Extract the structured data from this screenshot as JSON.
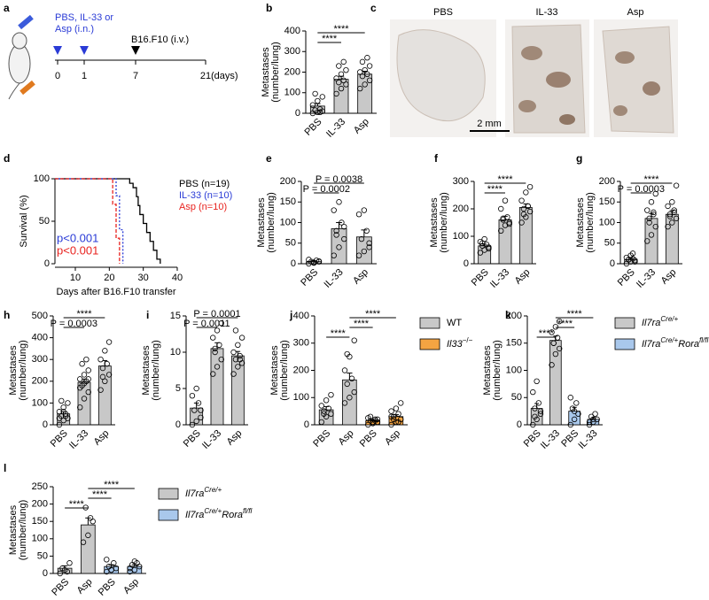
{
  "schematic": {
    "label": "a",
    "treatment": [
      "PBS, IL-33 or",
      "Asp (i.n.)"
    ],
    "injection": "B16.F10 (i.v.)",
    "days": [
      0,
      1,
      7,
      21
    ],
    "unit": "(days)"
  },
  "images": {
    "label": "c",
    "titles": [
      "PBS",
      "IL-33",
      "Asp"
    ],
    "scale": "2 mm"
  },
  "chart_data": [
    {
      "type": "bar",
      "label": "b",
      "ylabel": [
        "Metastases",
        "(number/lung)"
      ],
      "categories": [
        "PBS",
        "IL-33",
        "Asp"
      ],
      "series": [
        {
          "color": "#c8c8c8",
          "values": [
            35,
            165,
            190
          ],
          "errors": [
            12,
            15,
            14
          ],
          "points": [
            [
              0,
              5,
              10,
              15,
              20,
              40,
              60,
              80,
              95,
              5
            ],
            [
              95,
              120,
              140,
              150,
              160,
              170,
              190,
              210,
              230,
              250
            ],
            [
              120,
              140,
              160,
              180,
              190,
              200,
              210,
              230,
              250,
              270
            ]
          ]
        }
      ],
      "ylim": [
        0,
        400
      ],
      "yticks": [
        0,
        100,
        200,
        300,
        400
      ],
      "brackets": [
        {
          "from": 0,
          "to": 1,
          "label": "****"
        },
        {
          "from": 0,
          "to": 2,
          "label": "****"
        }
      ]
    },
    {
      "type": "line",
      "label": "d",
      "xlabel": "Days after B16.F10 transfer",
      "ylabel": "Survival (%)",
      "series": [
        {
          "name": "PBS (n=19)",
          "color": "#000000",
          "dash": "none",
          "x": [
            4,
            25,
            26,
            27,
            28,
            28.5,
            29,
            30,
            31,
            32,
            33,
            34,
            35
          ],
          "values": [
            100,
            100,
            94.7,
            89.5,
            78.9,
            68.4,
            57.9,
            47.4,
            36.8,
            26.3,
            15.8,
            5.3,
            0
          ]
        },
        {
          "name": "IL-33 (n=10)",
          "color": "#2a3bd6",
          "dash": "2 2",
          "x": [
            4,
            21,
            22,
            23,
            24
          ],
          "values": [
            100,
            100,
            80,
            40,
            0
          ]
        },
        {
          "name": "Asp (n=10)",
          "color": "#e8231f",
          "dash": "4 2",
          "x": [
            4,
            20,
            21,
            22,
            23
          ],
          "values": [
            100,
            100,
            70,
            30,
            0
          ]
        }
      ],
      "annotations": [
        {
          "text": "p<0.001",
          "color": "#2a3bd6"
        },
        {
          "text": "p<0.001",
          "color": "#e8231f"
        }
      ],
      "xlim": [
        4,
        40
      ],
      "xticks": [
        10,
        20,
        30,
        40
      ],
      "ylim": [
        0,
        100
      ],
      "yticks": [
        0,
        50,
        100
      ]
    },
    {
      "type": "bar",
      "label": "e",
      "ylabel": [
        "Metastases",
        "(number/lung)"
      ],
      "categories": [
        "PBS",
        "IL-33",
        "Asp"
      ],
      "series": [
        {
          "color": "#c8c8c8",
          "values": [
            5,
            85,
            65
          ],
          "errors": [
            2,
            15,
            17
          ],
          "points": [
            [
              0,
              2,
              5,
              5,
              8,
              10,
              3,
              6
            ],
            [
              20,
              40,
              60,
              80,
              100,
              130,
              150,
              90,
              70
            ],
            [
              20,
              30,
              40,
              60,
              80,
              120,
              130,
              50
            ]
          ]
        }
      ],
      "ylim": [
        0,
        200
      ],
      "yticks": [
        0,
        50,
        100,
        150,
        200
      ],
      "brackets": [
        {
          "from": 0,
          "to": 1,
          "label": "P = 0.0002"
        },
        {
          "from": 0,
          "to": 2,
          "label": "P = 0.0038"
        }
      ]
    },
    {
      "type": "bar",
      "label": "f",
      "ylabel": [
        "Metastases",
        "(number/lung)"
      ],
      "categories": [
        "PBS",
        "IL-33",
        "Asp"
      ],
      "series": [
        {
          "color": "#c8c8c8",
          "values": [
            65,
            160,
            205
          ],
          "errors": [
            6,
            13,
            13
          ],
          "points": [
            [
              40,
              50,
              60,
              65,
              70,
              80,
              90,
              55,
              75
            ],
            [
              120,
              140,
              150,
              160,
              170,
              200,
              230,
              145,
              165
            ],
            [
              150,
              170,
              190,
              200,
              210,
              230,
              260,
              280,
              180,
              210
            ]
          ]
        }
      ],
      "ylim": [
        0,
        300
      ],
      "yticks": [
        0,
        100,
        200,
        300
      ],
      "brackets": [
        {
          "from": 0,
          "to": 1,
          "label": "****"
        },
        {
          "from": 0,
          "to": 2,
          "label": "****"
        }
      ]
    },
    {
      "type": "bar",
      "label": "g",
      "ylabel": [
        "Metastases",
        "(number/lung)"
      ],
      "categories": [
        "PBS",
        "IL-33",
        "Asp"
      ],
      "series": [
        {
          "color": "#c8c8c8",
          "values": [
            10,
            110,
            120
          ],
          "errors": [
            3,
            12,
            9
          ],
          "points": [
            [
              0,
              5,
              8,
              10,
              12,
              15,
              20,
              5,
              10,
              25
            ],
            [
              55,
              70,
              90,
              110,
              120,
              130,
              150,
              170,
              100,
              125
            ],
            [
              90,
              100,
              110,
              120,
              130,
              140,
              150,
              190,
              115,
              125
            ]
          ]
        }
      ],
      "ylim": [
        0,
        200
      ],
      "yticks": [
        0,
        50,
        100,
        150,
        200
      ],
      "brackets": [
        {
          "from": 0,
          "to": 1,
          "label": "P = 0.0003"
        },
        {
          "from": 0,
          "to": 2,
          "label": "****"
        }
      ]
    },
    {
      "type": "bar",
      "label": "h",
      "ylabel": [
        "Metastases",
        "(number/lung)"
      ],
      "categories": [
        "PBS",
        "IL-33",
        "Asp"
      ],
      "series": [
        {
          "color": "#c8c8c8",
          "values": [
            50,
            195,
            270
          ],
          "errors": [
            10,
            15,
            25
          ],
          "points": [
            [
              0,
              20,
              30,
              40,
              50,
              60,
              80,
              100,
              110,
              40,
              30,
              60
            ],
            [
              80,
              120,
              150,
              180,
              200,
              210,
              230,
              250,
              280,
              300,
              170,
              190,
              210
            ],
            [
              160,
              200,
              230,
              260,
              280,
              300,
              340,
              380,
              220
            ]
          ]
        }
      ],
      "ylim": [
        0,
        500
      ],
      "yticks": [
        0,
        100,
        200,
        300,
        400,
        500
      ],
      "brackets": [
        {
          "from": 0,
          "to": 1,
          "label": "P = 0.0003"
        },
        {
          "from": 0,
          "to": 2,
          "label": "****"
        }
      ]
    },
    {
      "type": "bar",
      "label": "i",
      "ylabel": [
        "Metastases",
        "(number/lung)"
      ],
      "categories": [
        "PBS",
        "IL-33",
        "Asp"
      ],
      "series": [
        {
          "color": "#c8c8c8",
          "values": [
            2.3,
            10.5,
            9.5
          ],
          "errors": [
            0.7,
            0.8,
            0.6
          ],
          "points": [
            [
              0,
              0.5,
              1,
              2,
              3,
              4,
              5,
              2
            ],
            [
              7,
              8,
              9,
              10,
              11,
              12,
              13,
              14,
              10.5
            ],
            [
              7,
              8,
              8.5,
              9,
              9.5,
              10,
              11,
              12,
              13,
              9
            ]
          ]
        }
      ],
      "ylim": [
        0,
        15
      ],
      "yticks": [
        0,
        5,
        10,
        15
      ],
      "brackets": [
        {
          "from": 0,
          "to": 1,
          "label": "P = 0.0011"
        },
        {
          "from": 0,
          "to": 2,
          "label": "P = 0.0001"
        }
      ]
    },
    {
      "type": "bar",
      "label": "j",
      "ylabel": [
        "Metastases",
        "(number/lung)"
      ],
      "categories": [
        "PBS",
        "Asp",
        "PBS",
        "Asp"
      ],
      "series": [
        {
          "name_parts": [
            {
              "text": "WT"
            }
          ],
          "color": "#c8c8c8",
          "values": [
            55,
            165,
            null,
            null
          ],
          "errors": [
            12,
            25,
            null,
            null
          ],
          "points": [
            [
              10,
              30,
              40,
              50,
              60,
              70,
              90,
              110,
              40
            ],
            [
              80,
              100,
              120,
              150,
              170,
              200,
              250,
              310,
              260
            ],
            null,
            null
          ]
        },
        {
          "name_parts": [
            {
              "text": "Il33",
              "italic": true
            },
            {
              "text": "−/−",
              "sup": true
            }
          ],
          "color": "#f4a442",
          "values": [
            null,
            null,
            15,
            30
          ],
          "errors": [
            null,
            null,
            3,
            7
          ],
          "points": [
            null,
            null,
            [
              0,
              5,
              10,
              15,
              20,
              25,
              10,
              20,
              30,
              15
            ],
            [
              0,
              10,
              20,
              30,
              40,
              50,
              60,
              80,
              20,
              10,
              30
            ]
          ]
        }
      ],
      "ylim": [
        0,
        400
      ],
      "yticks": [
        0,
        100,
        200,
        300,
        400
      ],
      "brackets": [
        {
          "from": 0,
          "to": 1,
          "label": "****"
        },
        {
          "from": 1,
          "to": 2,
          "label": "****"
        },
        {
          "from": 1,
          "to": 3,
          "label": "****"
        }
      ]
    },
    {
      "type": "bar",
      "label": "k",
      "ylabel": [
        "Metastases",
        "(number/lung)"
      ],
      "categories": [
        "PBS",
        "IL-33",
        "PBS",
        "IL-33"
      ],
      "series": [
        {
          "name_parts": [
            {
              "text": "Il7ra",
              "italic": true
            },
            {
              "text": "Cre/+",
              "sup": true,
              "italic": true
            }
          ],
          "color": "#c8c8c8",
          "values": [
            30,
            155,
            null,
            null
          ],
          "errors": [
            9,
            8,
            null,
            null
          ],
          "points": [
            [
              0,
              10,
              20,
              30,
              40,
              60,
              80,
              25,
              15
            ],
            [
              110,
              130,
              140,
              150,
              160,
              170,
              180,
              190,
              150
            ],
            null,
            null
          ]
        },
        {
          "name_parts": [
            {
              "text": "Il7ra",
              "italic": true
            },
            {
              "text": "Cre/+",
              "sup": true,
              "italic": true
            },
            {
              "text": "Rora",
              "italic": true
            },
            {
              "text": "fl/fl",
              "sup": true,
              "italic": true
            }
          ],
          "color": "#a9c8ec",
          "values": [
            null,
            null,
            25,
            10
          ],
          "errors": [
            null,
            null,
            7,
            3
          ],
          "points": [
            null,
            null,
            [
              0,
              10,
              20,
              30,
              40,
              50,
              25
            ],
            [
              0,
              5,
              10,
              15,
              20,
              5,
              10
            ]
          ]
        }
      ],
      "ylim": [
        0,
        200
      ],
      "yticks": [
        0,
        50,
        100,
        150,
        200
      ],
      "brackets": [
        {
          "from": 0,
          "to": 1,
          "label": "****"
        },
        {
          "from": 1,
          "to": 2,
          "label": "****"
        },
        {
          "from": 1,
          "to": 3,
          "label": "****"
        }
      ]
    },
    {
      "type": "bar",
      "label": "l",
      "ylabel": [
        "Metastases",
        "(number/lung)"
      ],
      "categories": [
        "PBS",
        "Asp",
        "PBS",
        "Asp"
      ],
      "series": [
        {
          "name_parts": [
            {
              "text": "Il7ra",
              "italic": true
            },
            {
              "text": "Cre/+",
              "sup": true,
              "italic": true
            }
          ],
          "color": "#c8c8c8",
          "values": [
            15,
            140,
            null,
            null
          ],
          "errors": [
            7,
            20,
            null,
            null
          ],
          "points": [
            [
              0,
              10,
              30,
              15,
              5
            ],
            [
              90,
              110,
              150,
              190,
              160
            ],
            null,
            null
          ]
        },
        {
          "name_parts": [
            {
              "text": "Il7ra",
              "italic": true
            },
            {
              "text": "Cre/+",
              "sup": true,
              "italic": true
            },
            {
              "text": "Rora",
              "italic": true
            },
            {
              "text": "fl/fl",
              "sup": true,
              "italic": true
            }
          ],
          "color": "#a9c8ec",
          "values": [
            null,
            null,
            20,
            20
          ],
          "errors": [
            null,
            null,
            5,
            5
          ],
          "points": [
            null,
            null,
            [
              5,
              10,
              15,
              20,
              30,
              40,
              10
            ],
            [
              5,
              10,
              20,
              25,
              30,
              15,
              35
            ]
          ]
        }
      ],
      "ylim": [
        0,
        250
      ],
      "yticks": [
        0,
        50,
        100,
        150,
        200,
        250
      ],
      "brackets": [
        {
          "from": 0,
          "to": 1,
          "label": "****"
        },
        {
          "from": 1,
          "to": 2,
          "label": "****"
        },
        {
          "from": 1,
          "to": 3,
          "label": "****"
        }
      ]
    }
  ]
}
